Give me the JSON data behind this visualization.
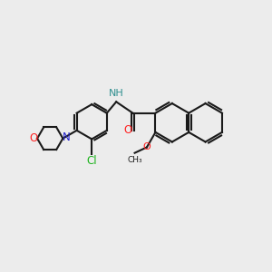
{
  "background_color": "#ececec",
  "bond_color": "#1a1a1a",
  "bond_width": 1.5,
  "atom_colors": {
    "N_blue": "#2222cc",
    "O_red": "#ff2020",
    "Cl_green": "#1db31d",
    "NH_teal": "#2f8f8f"
  },
  "figsize": [
    3.0,
    3.0
  ],
  "dpi": 100,
  "xlim": [
    0,
    10
  ],
  "ylim": [
    0,
    10
  ]
}
